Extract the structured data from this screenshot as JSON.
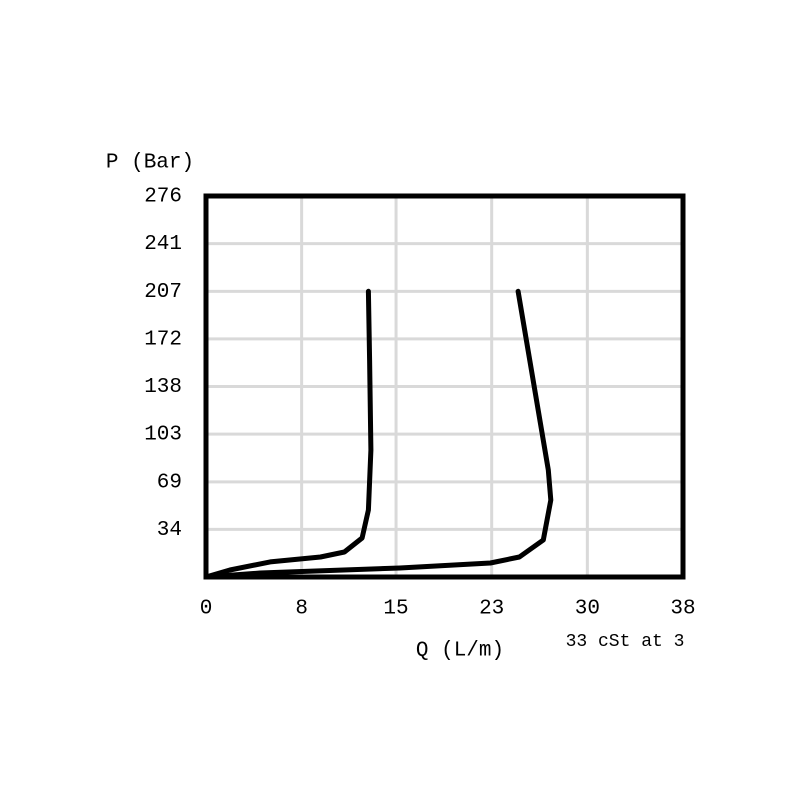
{
  "chart_data": {
    "type": "line",
    "y_label": "P (Bar)",
    "x_label": "Q (L/m)",
    "annotation": "33 cSt at 3",
    "xlim": [
      0,
      37.9
    ],
    "ylim": [
      0,
      275.8
    ],
    "xticks": [
      0,
      {
        "value": 7.6,
        "label": "8"
      },
      {
        "value": 15.1,
        "label": "15"
      },
      {
        "value": 22.7,
        "label": "23"
      },
      {
        "value": 30.3,
        "label": "30"
      },
      {
        "value": 37.9,
        "label": "38"
      }
    ],
    "yticks": [
      {
        "value": 34.5,
        "label": "34"
      },
      {
        "value": 68.9,
        "label": "69"
      },
      {
        "value": 103.4,
        "label": "103"
      },
      {
        "value": 137.9,
        "label": "138"
      },
      {
        "value": 172.4,
        "label": "172"
      },
      {
        "value": 206.8,
        "label": "207"
      },
      {
        "value": 241.3,
        "label": "241"
      },
      {
        "value": 275.8,
        "label": "276"
      }
    ],
    "grid": true,
    "series": [
      {
        "color": "#000000",
        "x": [
          0,
          1.9,
          5.1,
          9.1,
          11.0,
          12.4,
          12.9,
          13.1,
          13.0,
          12.9
        ],
        "values": [
          0,
          5.1,
          10.9,
          14.5,
          18.1,
          28.2,
          48.5,
          91.9,
          157.1,
          206.8
        ]
      },
      {
        "color": "#000000",
        "x": [
          0,
          4.3,
          15.4,
          22.6,
          24.9,
          26.8,
          27.4,
          27.2,
          24.8
        ],
        "values": [
          0,
          2.9,
          6.5,
          10.1,
          14.5,
          26.8,
          55.7,
          77.5,
          206.8
        ]
      }
    ]
  }
}
